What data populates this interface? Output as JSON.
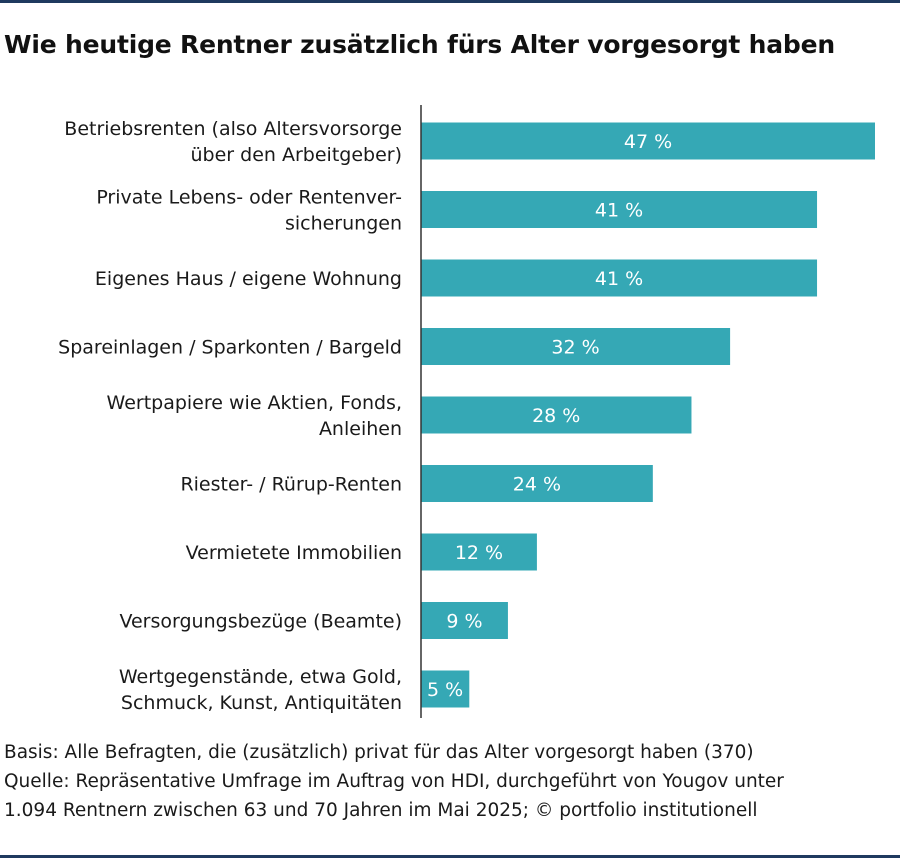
{
  "title": "Wie heutige Rentner zusätzlich fürs Alter vorgesorgt haben",
  "chart_data": {
    "type": "bar",
    "orientation": "horizontal",
    "title": "Wie heutige Rentner zusätzlich fürs Alter vorgesorgt haben",
    "categories": [
      [
        "Betriebsrenten (also Altersvorsorge",
        "über den Arbeitgeber)"
      ],
      [
        "Private Lebens- oder Rentenver-",
        "sicherungen"
      ],
      [
        "Eigenes Haus / eigene Wohnung"
      ],
      [
        "Spareinlagen / Sparkonten / Bargeld"
      ],
      [
        "Wertpapiere wie Aktien, Fonds,",
        "Anleihen"
      ],
      [
        "Riester- / Rürup-Renten"
      ],
      [
        "Vermietete Immobilien"
      ],
      [
        "Versorgungsbezüge (Beamte)"
      ],
      [
        "Wertgegenstände, etwa Gold,",
        "Schmuck, Kunst, Antiquitäten"
      ]
    ],
    "values": [
      47,
      41,
      41,
      32,
      28,
      24,
      12,
      9,
      5
    ],
    "value_labels": [
      "47 %",
      "41 %",
      "41 %",
      "32 %",
      "28 %",
      "24 %",
      "12 %",
      "9 %",
      "5 %"
    ],
    "unit": "%",
    "xlim": [
      0,
      47
    ],
    "bar_color": "#35a8b5",
    "value_label_color": "#ffffff",
    "grid": false,
    "legend": "none"
  },
  "footer": {
    "line1": "Basis: Alle Befragten, die (zusätzlich) privat für das Alter vorgesorgt haben (370)",
    "line2": "Quelle: Repräsentative Umfrage im Auftrag von HDI, durchgeführt von Yougov unter",
    "line3": "1.094 Rentnern zwischen 63 und 70 Jahren im Mai 2025; © portfolio institutionell"
  },
  "colors": {
    "rule": "#1f3a5f",
    "bar": "#35a8b5",
    "axis": "#333333"
  }
}
